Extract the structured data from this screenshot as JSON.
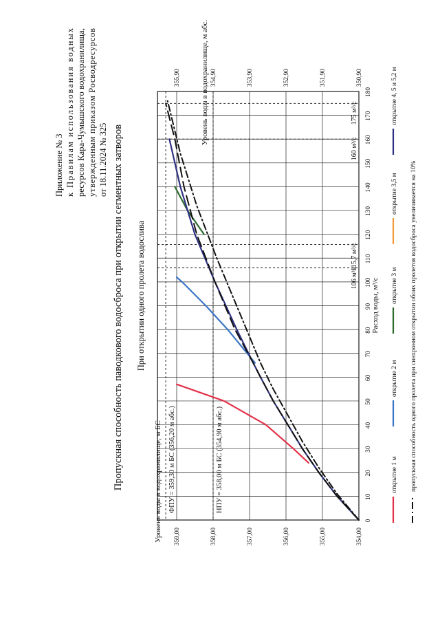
{
  "header": {
    "lines": [
      "Приложение № 3",
      "к Правилам использования водных",
      "ресурсов Кара-Чумышского водохранилища,",
      "утвержденным приказом Росводресурсов",
      "от 18.11.2024 № 325"
    ]
  },
  "title": "Пропускная способность паводкового водосброса при открытии сегментных затворов",
  "subtitle": "При открытии одного пролета водослива",
  "footnote": "пропускная способность одного пролета при синхронном открытии обоих пролетов водосброса увеличивается на 10%",
  "colors": {
    "open1": "#e33049",
    "open2": "#3a74c4",
    "open3": "#2d6b2d",
    "open35": "#f29a3b",
    "open45": "#2e3180",
    "sync": "#111111"
  },
  "chart_data": {
    "type": "line",
    "title": "Пропускная способность паводкового водосброса при открытии сегментных затворов",
    "xlabel": "Расход воды, м³/с",
    "ylabel_left": "Уровень воды в водохранилище, м БС",
    "ylabel_right": "Уровень воды в водохранилище, м абс.",
    "xlim": [
      0,
      180
    ],
    "ylim": [
      354.0,
      359.3
    ],
    "x_ticks": [
      "0",
      "10",
      "20",
      "30",
      "40",
      "50",
      "60",
      "70",
      "80",
      "90",
      "100",
      "110",
      "120",
      "130",
      "140",
      "150",
      "160",
      "170",
      "180"
    ],
    "y_ticks_left": [
      "354,00",
      "355,00",
      "356,00",
      "357,00",
      "358,00",
      "359,00"
    ],
    "y_ticks_right": [
      "350,90",
      "351,90",
      "352,90",
      "353,90",
      "354,90",
      "355,90"
    ],
    "series": [
      {
        "name": "открытие 1 м",
        "color": "open1",
        "dash": "",
        "x": [
          24,
          30,
          40,
          50,
          57
        ],
        "y": [
          355.38,
          355.8,
          356.55,
          357.7,
          359.0
        ]
      },
      {
        "name": "открытие 2 м",
        "color": "open2",
        "dash": "",
        "x": [
          66,
          80,
          90,
          100,
          102
        ],
        "y": [
          356.85,
          357.6,
          358.2,
          358.85,
          359.0
        ]
      },
      {
        "name": "открытие 3 м",
        "color": "open3",
        "dash": "",
        "x": [
          120,
          130,
          140
        ],
        "y": [
          358.25,
          358.7,
          359.05
        ]
      },
      {
        "name": "открытие 3,5 м",
        "color": "open35",
        "dash": "",
        "x": [],
        "y": []
      },
      {
        "name": "открытие 4, 5 и 5,2 м",
        "color": "open45",
        "dash": "",
        "x": [
          0,
          10,
          20,
          30,
          40,
          50,
          60,
          66,
          80,
          100,
          120,
          140,
          160
        ],
        "y": [
          354.0,
          354.6,
          355.1,
          355.55,
          355.95,
          356.35,
          356.7,
          356.9,
          357.35,
          357.95,
          358.5,
          358.9,
          359.2
        ]
      },
      {
        "name": "пропускная способность одного пролета при синхронном открытии обоих пролетов водосброса увеличивается на 10%",
        "color": "sync",
        "dash": "10,4,2,4",
        "x": [
          0,
          11,
          22,
          33,
          44,
          55,
          66,
          88,
          110,
          132,
          154,
          176
        ],
        "y": [
          354.0,
          354.6,
          355.1,
          355.55,
          355.95,
          356.35,
          356.7,
          357.3,
          357.9,
          358.45,
          358.9,
          359.25
        ]
      },
      {
        "name": "",
        "color": "sync",
        "dash": "14,7",
        "x": [
          0,
          10,
          20,
          30,
          40,
          50,
          60,
          66,
          80,
          100,
          120,
          140,
          160,
          175
        ],
        "y": [
          354.0,
          354.6,
          355.1,
          355.55,
          355.95,
          356.35,
          356.7,
          356.9,
          357.4,
          357.95,
          358.45,
          358.8,
          359.05,
          359.3
        ]
      }
    ],
    "hlines": [
      {
        "y": 359.3,
        "label": "ФПУ = 359,30 м БС (356,20 м абс.)"
      },
      {
        "y": 358.0,
        "label": "НПУ = 358,00 м БС (354,90 м абс.)"
      }
    ],
    "vlines": [
      {
        "x": 106,
        "label": "106 м³/с"
      },
      {
        "x": 115.7,
        "label": "115,7 м³/с"
      },
      {
        "x": 160,
        "label": "160 м³/с"
      },
      {
        "x": 175,
        "label": "175 м³/с"
      }
    ]
  }
}
